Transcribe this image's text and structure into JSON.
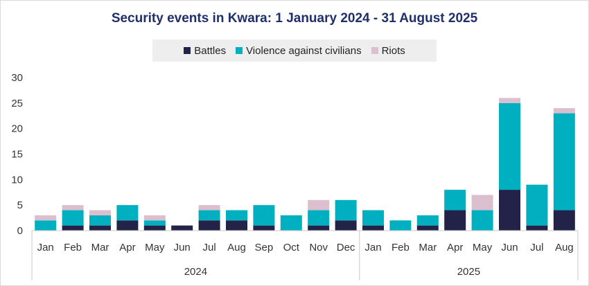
{
  "chart_data": {
    "type": "bar",
    "stacked": true,
    "title": "Security events in Kwara: 1 January 2024 - 31 August 2025",
    "categories": [
      "Jan",
      "Feb",
      "Mar",
      "Apr",
      "May",
      "Jun",
      "Jul",
      "Aug",
      "Sep",
      "Oct",
      "Nov",
      "Dec",
      "Jan",
      "Feb",
      "Mar",
      "Apr",
      "May",
      "Jun",
      "Jul",
      "Aug"
    ],
    "groups": [
      {
        "label": "2024",
        "count": 12
      },
      {
        "label": "2025",
        "count": 8
      }
    ],
    "series": [
      {
        "name": "Battles",
        "color": "#23234a",
        "values": [
          0,
          1,
          1,
          2,
          1,
          1,
          2,
          2,
          1,
          0,
          1,
          2,
          1,
          0,
          1,
          4,
          0,
          8,
          1,
          4
        ]
      },
      {
        "name": "Violence against civilians",
        "color": "#00afc0",
        "values": [
          2,
          3,
          2,
          3,
          1,
          0,
          2,
          2,
          4,
          3,
          3,
          4,
          3,
          2,
          2,
          4,
          4,
          17,
          8,
          19
        ]
      },
      {
        "name": "Riots",
        "color": "#dbbfce",
        "values": [
          1,
          1,
          1,
          0,
          1,
          0,
          1,
          0,
          0,
          0,
          2,
          0,
          0,
          0,
          0,
          0,
          3,
          1,
          0,
          1
        ]
      }
    ],
    "yticks": [
      0,
      5,
      10,
      15,
      20,
      25,
      30
    ],
    "ylim": [
      0,
      30
    ],
    "legend_position": "top-center"
  }
}
